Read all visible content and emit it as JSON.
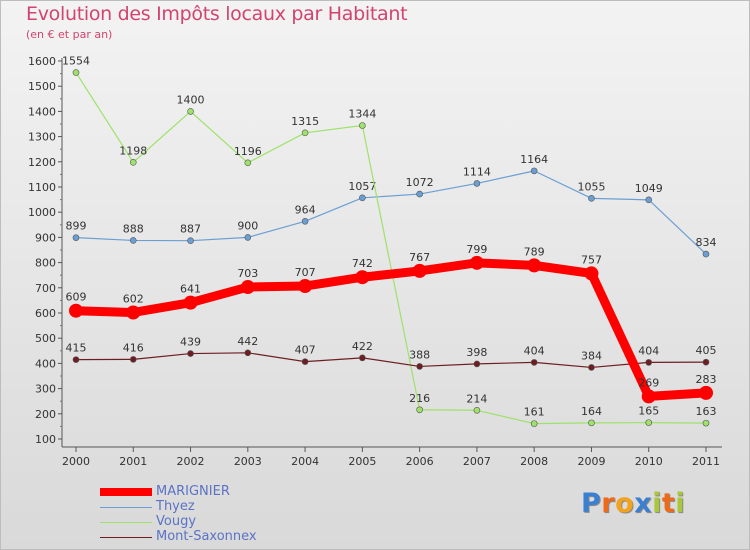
{
  "chart_data": {
    "type": "line",
    "title": "Evolution des Impôts locaux par Habitant",
    "subtitle": "(en € et par an)",
    "xlabel": "",
    "ylabel": "",
    "x": [
      "2000",
      "2001",
      "2002",
      "2003",
      "2004",
      "2005",
      "2006",
      "2007",
      "2008",
      "2009",
      "2010",
      "2011"
    ],
    "ylim": [
      100,
      1600
    ],
    "yticks": [
      100,
      200,
      300,
      400,
      500,
      600,
      700,
      800,
      900,
      1000,
      1100,
      1200,
      1300,
      1400,
      1500,
      1600
    ],
    "grid": false,
    "legend_position": "bottom-left",
    "series": [
      {
        "name": "Thyez",
        "color": "#6b9fd3",
        "values": [
          899,
          888,
          887,
          900,
          964,
          1057,
          1072,
          1114,
          1164,
          1055,
          1049,
          834
        ]
      },
      {
        "name": "Vougy",
        "color": "#9ee26a",
        "values": [
          1554,
          1198,
          1400,
          1196,
          1315,
          1344,
          216,
          214,
          161,
          164,
          165,
          163
        ]
      },
      {
        "name": "Mont-Saxonnex",
        "color": "#6e1e22",
        "values": [
          415,
          416,
          439,
          442,
          407,
          422,
          388,
          398,
          404,
          384,
          404,
          405
        ]
      },
      {
        "name": "MARIGNIER",
        "color": "#ff0000",
        "values": [
          609,
          602,
          641,
          703,
          707,
          742,
          767,
          799,
          789,
          757,
          269,
          283
        ]
      }
    ]
  },
  "legend": {
    "items": [
      {
        "name": "MARIGNIER",
        "color": "#ff0000"
      },
      {
        "name": "Thyez",
        "color": "#6b9fd3"
      },
      {
        "name": "Vougy",
        "color": "#9ee26a"
      },
      {
        "name": "Mont-Saxonnex",
        "color": "#6e1e22"
      }
    ]
  },
  "logo": {
    "letters": [
      "P",
      "r",
      "o",
      "x",
      "i",
      "t",
      "i"
    ],
    "colors": [
      "#3a7fd0",
      "#ee6a1b",
      "#f3a21d",
      "#3a7fd0",
      "#a8c83a",
      "#ee6a1b",
      "#a8c83a"
    ]
  }
}
